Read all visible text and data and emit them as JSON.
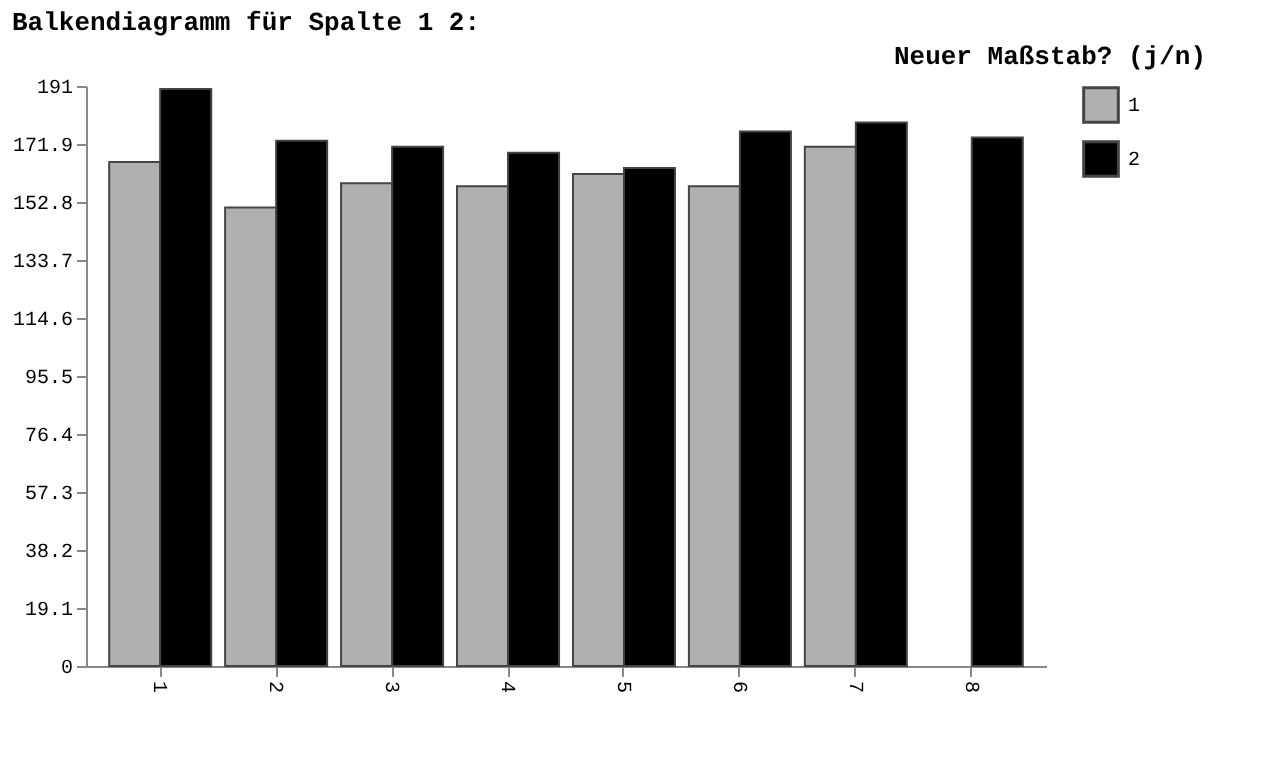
{
  "chart_data": {
    "type": "bar",
    "title": "Balkendiagramm für Spalte 1 2:",
    "annotations": [
      "Neuer Maßstab? (j/n)"
    ],
    "categories": [
      "1",
      "2",
      "3",
      "4",
      "5",
      "6",
      "7",
      "8"
    ],
    "series": [
      {
        "name": "1",
        "color": "#b0b0b0",
        "values": [
          166,
          151,
          159,
          158,
          162,
          158,
          171,
          null
        ]
      },
      {
        "name": "2",
        "color": "#000000",
        "values": [
          190,
          173,
          171,
          169,
          164,
          176,
          179,
          174
        ]
      }
    ],
    "ylim": [
      0,
      191
    ],
    "yticks": [
      0,
      19.1,
      38.2,
      57.3,
      76.4,
      95.5,
      114.6,
      133.7,
      152.8,
      171.9,
      191
    ],
    "grid": false,
    "legend": "right"
  }
}
